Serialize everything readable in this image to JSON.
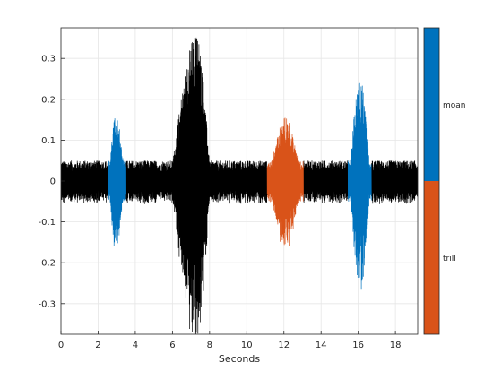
{
  "chart_data": {
    "type": "line",
    "title": "",
    "xlabel": "Seconds",
    "ylabel": "",
    "xlim": [
      0,
      19.2
    ],
    "ylim": [
      -0.375,
      0.375
    ],
    "x_ticks": [
      0,
      2,
      4,
      6,
      8,
      10,
      12,
      14,
      16,
      18
    ],
    "y_ticks": [
      -0.3,
      -0.2,
      -0.1,
      0,
      0.1,
      0.2,
      0.3
    ],
    "x_tick_labels": [
      "0",
      "2",
      "4",
      "6",
      "8",
      "10",
      "12",
      "14",
      "16",
      "18"
    ],
    "y_tick_labels": [
      "-0.3",
      "-0.2",
      "-0.1",
      "0",
      "0.1",
      "0.2",
      "0.3"
    ],
    "grid": true,
    "background_noise_amplitude": 0.05,
    "series": [
      {
        "label": "",
        "color": "#000000",
        "segments": [
          [
            0,
            2.55
          ],
          [
            3.5,
            11.1
          ],
          [
            13.05,
            15.45
          ],
          [
            16.7,
            19.2
          ]
        ],
        "bursts": [
          {
            "x_range": [
              5.8,
              8.1
            ],
            "peak": 0.36,
            "center": 7.3
          }
        ]
      },
      {
        "label": "moan",
        "color": "#0072BD",
        "segments": [
          [
            2.55,
            3.5
          ],
          [
            15.45,
            16.7
          ]
        ],
        "bursts": [
          {
            "x_range": [
              2.55,
              3.5
            ],
            "peak": 0.16,
            "center": 2.95
          },
          {
            "x_range": [
              15.45,
              16.7
            ],
            "peak": 0.25,
            "center": 16.1
          }
        ]
      },
      {
        "label": "trill",
        "color": "#D95319",
        "segments": [
          [
            11.1,
            13.05
          ]
        ],
        "bursts": [
          {
            "x_range": [
              11.1,
              13.05
            ],
            "peak": 0.155,
            "center": 12.05
          }
        ]
      }
    ],
    "colorbar": {
      "labels": [
        "moan",
        "trill"
      ],
      "colors": [
        "#0072BD",
        "#D95319"
      ]
    }
  }
}
